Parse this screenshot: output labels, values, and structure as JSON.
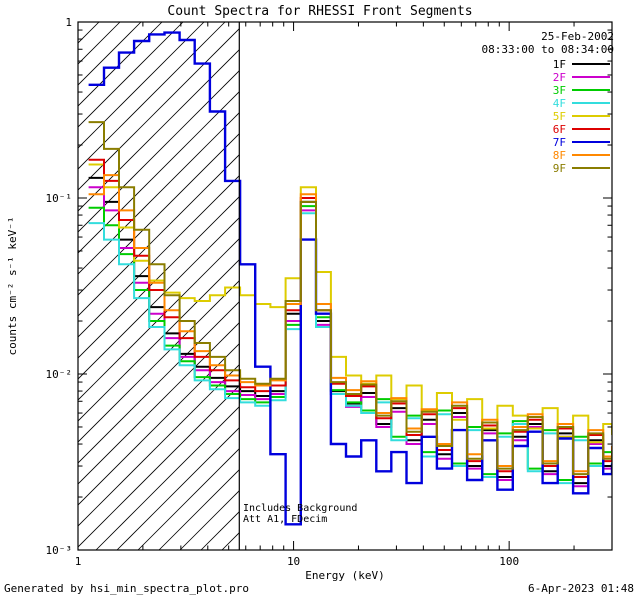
{
  "title": "Count Spectra for RHESSI Front Segments",
  "header": {
    "date": "25-Feb-2002",
    "time_range": "08:33:00 to 08:34:00"
  },
  "annotations": [
    "Includes Background",
    "Att A1, FDecim"
  ],
  "footer": {
    "generated_by": "Generated by hsi_min_spectra_plot.pro",
    "timestamp": "6-Apr-2023 01:48"
  },
  "chart_data": {
    "type": "line",
    "style": "steps-log-log",
    "title": "Count Spectra for RHESSI Front Segments",
    "xlabel": "Energy (keV)",
    "ylabel": "counts cm⁻² s⁻¹ keV⁻¹",
    "xscale": "log",
    "yscale": "log",
    "xlim": [
      1,
      300
    ],
    "ylim": [
      0.001,
      1
    ],
    "grid": false,
    "legend_position": "top-right",
    "hatch_region": {
      "xmin": 1,
      "xmax": 5.6
    },
    "xticks": [
      {
        "v": 1,
        "label": "1"
      },
      {
        "v": 10,
        "label": "10"
      },
      {
        "v": 100,
        "label": "100"
      }
    ],
    "yticks": [
      {
        "v": 1,
        "label": "1"
      },
      {
        "v": 0.1,
        "label": "10⁻¹"
      },
      {
        "v": 0.01,
        "label": "10⁻²"
      },
      {
        "v": 0.001,
        "label": "10⁻³"
      }
    ],
    "x": [
      1.12,
      1.32,
      1.55,
      1.82,
      2.14,
      2.52,
      2.96,
      3.48,
      4.09,
      4.81,
      5.65,
      6.64,
      7.81,
      9.18,
      10.8,
      12.7,
      14.9,
      17.5,
      20.6,
      24.2,
      28.4,
      33.4,
      39.3,
      46.2,
      54.3,
      63.8,
      75.0,
      88.2,
      104,
      122,
      143,
      168,
      198,
      233,
      273,
      300
    ],
    "series": [
      {
        "name": "1F",
        "color": "#000000",
        "values": [
          0.13,
          0.095,
          0.058,
          0.036,
          0.024,
          0.017,
          0.013,
          0.011,
          0.0095,
          0.0085,
          0.008,
          0.0075,
          0.008,
          0.022,
          0.095,
          0.02,
          0.008,
          0.0068,
          0.0078,
          0.0052,
          0.0064,
          0.0042,
          0.0055,
          0.0035,
          0.006,
          0.003,
          0.0048,
          0.0026,
          0.0044,
          0.0052,
          0.0028,
          0.0046,
          0.0024,
          0.0042,
          0.003,
          0.0034
        ]
      },
      {
        "name": "2F",
        "color": "#cc00cc",
        "values": [
          0.115,
          0.085,
          0.052,
          0.033,
          0.022,
          0.016,
          0.0125,
          0.0105,
          0.009,
          0.008,
          0.0076,
          0.0072,
          0.0077,
          0.02,
          0.085,
          0.019,
          0.0077,
          0.0065,
          0.0074,
          0.005,
          0.0061,
          0.004,
          0.0052,
          0.0033,
          0.0057,
          0.0029,
          0.0046,
          0.0025,
          0.0042,
          0.005,
          0.0027,
          0.0044,
          0.0023,
          0.004,
          0.0029,
          0.0032
        ]
      },
      {
        "name": "3F",
        "color": "#00cc00",
        "values": [
          0.088,
          0.07,
          0.048,
          0.03,
          0.02,
          0.0145,
          0.0118,
          0.0096,
          0.0086,
          0.0077,
          0.0072,
          0.0069,
          0.0074,
          0.019,
          0.09,
          0.021,
          0.0081,
          0.0069,
          0.0062,
          0.0072,
          0.0044,
          0.0058,
          0.0036,
          0.0062,
          0.0031,
          0.005,
          0.0027,
          0.0046,
          0.0054,
          0.0029,
          0.0048,
          0.0025,
          0.0044,
          0.0031,
          0.0036,
          0.0028
        ]
      },
      {
        "name": "4F",
        "color": "#33dddd",
        "values": [
          0.072,
          0.058,
          0.042,
          0.027,
          0.0185,
          0.0138,
          0.0112,
          0.0092,
          0.0082,
          0.0073,
          0.0069,
          0.0066,
          0.0071,
          0.018,
          0.082,
          0.0185,
          0.0077,
          0.0066,
          0.006,
          0.0069,
          0.0042,
          0.0056,
          0.0034,
          0.0059,
          0.003,
          0.0048,
          0.0026,
          0.0044,
          0.0052,
          0.0028,
          0.0046,
          0.0024,
          0.0042,
          0.003,
          0.0034,
          0.0027
        ]
      },
      {
        "name": "5F",
        "color": "#ddcc00",
        "values": [
          0.155,
          0.115,
          0.068,
          0.044,
          0.034,
          0.029,
          0.027,
          0.026,
          0.028,
          0.031,
          0.028,
          0.025,
          0.024,
          0.035,
          0.115,
          0.038,
          0.0125,
          0.0098,
          0.0088,
          0.0098,
          0.0072,
          0.0086,
          0.0062,
          0.0078,
          0.0055,
          0.0072,
          0.0049,
          0.0066,
          0.0058,
          0.0049,
          0.0064,
          0.0044,
          0.0058,
          0.0041,
          0.0052,
          0.0045
        ]
      },
      {
        "name": "6F",
        "color": "#dd0000",
        "values": [
          0.165,
          0.125,
          0.075,
          0.047,
          0.03,
          0.021,
          0.016,
          0.0125,
          0.0105,
          0.0092,
          0.0084,
          0.008,
          0.0086,
          0.023,
          0.1,
          0.023,
          0.0088,
          0.0075,
          0.0085,
          0.0056,
          0.0068,
          0.0045,
          0.0059,
          0.0037,
          0.0064,
          0.0032,
          0.0051,
          0.0028,
          0.0047,
          0.0055,
          0.003,
          0.0049,
          0.0026,
          0.0045,
          0.0032,
          0.0036
        ]
      },
      {
        "name": "7F",
        "color": "#0000dd",
        "values": [
          0.44,
          0.55,
          0.67,
          0.78,
          0.85,
          0.87,
          0.79,
          0.58,
          0.31,
          0.125,
          0.042,
          0.011,
          0.0035,
          0.0014,
          0.058,
          0.022,
          0.004,
          0.0034,
          0.0042,
          0.0028,
          0.0036,
          0.0024,
          0.0044,
          0.0029,
          0.0048,
          0.0025,
          0.0042,
          0.0022,
          0.0039,
          0.0047,
          0.0024,
          0.0043,
          0.0021,
          0.0038,
          0.0027,
          0.0031
        ]
      },
      {
        "name": "8F",
        "color": "#ff8800",
        "values": [
          0.105,
          0.135,
          0.085,
          0.052,
          0.033,
          0.023,
          0.0175,
          0.0135,
          0.0112,
          0.0098,
          0.009,
          0.0086,
          0.0092,
          0.025,
          0.105,
          0.025,
          0.0095,
          0.0081,
          0.0091,
          0.006,
          0.0073,
          0.0049,
          0.0063,
          0.004,
          0.0069,
          0.0035,
          0.0055,
          0.003,
          0.005,
          0.0059,
          0.0032,
          0.0052,
          0.0028,
          0.0048,
          0.0034,
          0.0039
        ]
      },
      {
        "name": "9F",
        "color": "#8a7d00",
        "values": [
          0.27,
          0.19,
          0.115,
          0.066,
          0.042,
          0.028,
          0.02,
          0.015,
          0.0125,
          0.0105,
          0.0094,
          0.0088,
          0.0094,
          0.026,
          0.095,
          0.023,
          0.009,
          0.0077,
          0.0087,
          0.0058,
          0.007,
          0.0047,
          0.0061,
          0.0039,
          0.0066,
          0.0033,
          0.0053,
          0.0029,
          0.0048,
          0.0057,
          0.0031,
          0.005,
          0.0027,
          0.0046,
          0.0033,
          0.0037
        ]
      }
    ]
  }
}
